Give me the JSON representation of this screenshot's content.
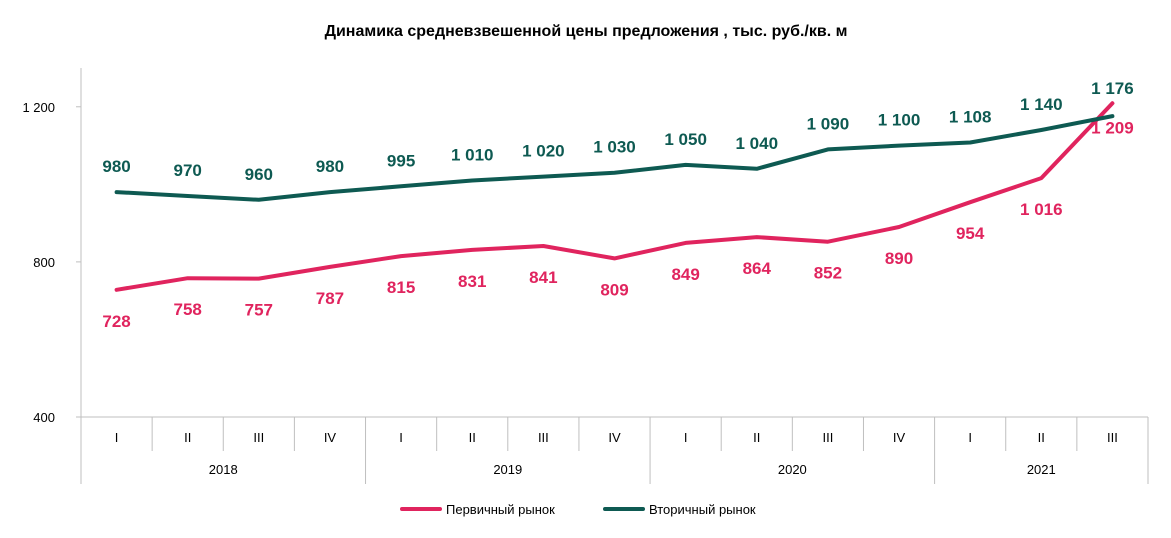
{
  "chart_data": {
    "type": "line",
    "title": "Динамика средневзвешенной цены предложения , тыс. руб./кв. м",
    "xlabel": "",
    "ylabel": "",
    "ylim": [
      400,
      1300
    ],
    "yticks": [
      400,
      800,
      1200
    ],
    "ytick_labels": [
      "400",
      "800",
      "1 200"
    ],
    "years": [
      {
        "label": "2018",
        "quarters": [
          "I",
          "II",
          "III",
          "IV"
        ]
      },
      {
        "label": "2019",
        "quarters": [
          "I",
          "II",
          "III",
          "IV"
        ]
      },
      {
        "label": "2020",
        "quarters": [
          "I",
          "II",
          "III",
          "IV"
        ]
      },
      {
        "label": "2021",
        "quarters": [
          "I",
          "II",
          "III"
        ]
      }
    ],
    "series": [
      {
        "name": "Первичный рынок",
        "color": "#E0245E",
        "values": [
          728,
          758,
          757,
          787,
          815,
          831,
          841,
          809,
          849,
          864,
          852,
          890,
          954,
          1016,
          1209
        ],
        "labels": [
          "728",
          "758",
          "757",
          "787",
          "815",
          "831",
          "841",
          "809",
          "849",
          "864",
          "852",
          "890",
          "954",
          "1 016",
          "1 209"
        ],
        "label_position": "below"
      },
      {
        "name": "Вторичный рынок",
        "color": "#0E5A52",
        "values": [
          980,
          970,
          960,
          980,
          995,
          1010,
          1020,
          1030,
          1050,
          1040,
          1090,
          1100,
          1108,
          1140,
          1176
        ],
        "labels": [
          "980",
          "970",
          "960",
          "980",
          "995",
          "1 010",
          "1 020",
          "1 030",
          "1 050",
          "1 040",
          "1 090",
          "1 100",
          "1 108",
          "1 140",
          "1 176"
        ],
        "label_position": "above"
      }
    ],
    "grid": false,
    "legend_position": "bottom"
  }
}
